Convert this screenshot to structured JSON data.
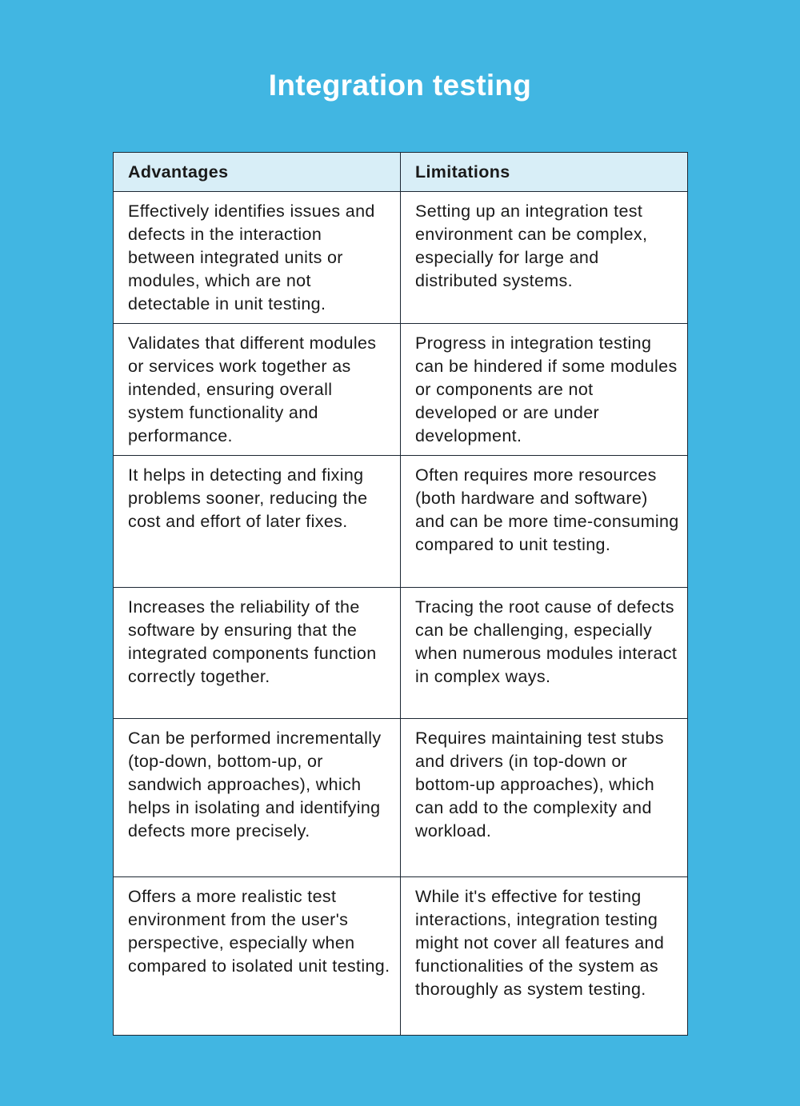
{
  "title": "Integration testing",
  "colors": {
    "background": "#41b6e2",
    "header": "#d8eef7",
    "border": "#1c2733"
  },
  "table": {
    "headers": [
      "Advantages",
      "Limitations"
    ],
    "rows": [
      [
        "Effectively identifies issues and defects in the interaction between integrated units or modules, which are not detectable in unit testing.",
        "Setting up an integration test environment can be complex, especially for large and distributed systems."
      ],
      [
        "Validates that different modules or services work together as intended, ensuring overall system functionality and performance.",
        "Progress in integration testing can be hindered if some modules or components are not developed or are under development."
      ],
      [
        "It helps in detecting and fixing problems sooner, reducing the cost and effort of later fixes.",
        "Often requires more resources (both hardware and software) and can be more time-consuming compared to unit testing."
      ],
      [
        "Increases the reliability of the software by ensuring that the integrated components function correctly together.",
        "Tracing the root cause of defects can be challenging, especially when numerous modules interact in complex ways."
      ],
      [
        "Can be performed incrementally (top-down, bottom-up, or sandwich approaches), which helps in isolating and identifying defects more precisely.",
        "Requires maintaining test stubs and drivers (in top-down or bottom-up approaches), which can add to the complexity and workload."
      ],
      [
        "Offers a more realistic test environment from the user's perspective, especially when compared to isolated unit testing.",
        "While it's effective for testing interactions, integration testing might not cover all features and functionalities of the system as thoroughly as system testing."
      ]
    ]
  }
}
